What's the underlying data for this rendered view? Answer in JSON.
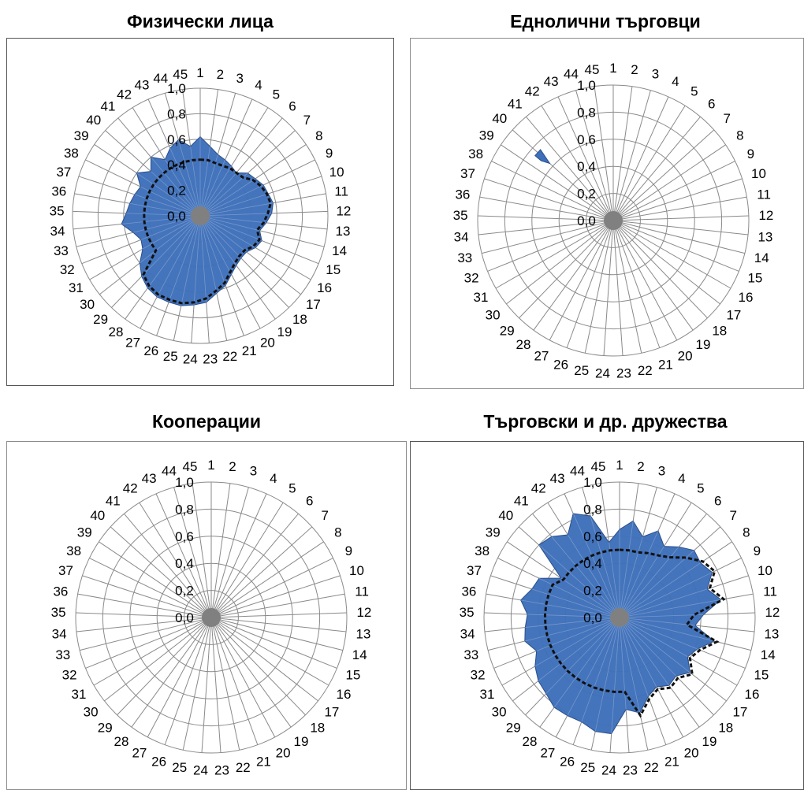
{
  "chart_data": [
    {
      "type": "radar",
      "title": "Физически лица",
      "categories": [
        "1",
        "2",
        "3",
        "4",
        "5",
        "6",
        "7",
        "8",
        "9",
        "10",
        "11",
        "12",
        "13",
        "14",
        "15",
        "16",
        "17",
        "18",
        "19",
        "20",
        "21",
        "22",
        "23",
        "24",
        "25",
        "26",
        "27",
        "28",
        "29",
        "30",
        "31",
        "32",
        "33",
        "34",
        "35",
        "36",
        "37",
        "38",
        "39",
        "40",
        "41",
        "42",
        "43",
        "44",
        "45"
      ],
      "rlim": [
        0,
        1
      ],
      "ticks": [
        "0,0",
        "0,2",
        "0,4",
        "0,6",
        "0,8",
        "1,0"
      ],
      "grid": true,
      "series": [
        {
          "color": "#3e6fba",
          "values": [
            0.62,
            0.55,
            0.5,
            0.48,
            0.46,
            0.44,
            0.5,
            0.52,
            0.55,
            0.56,
            0.58,
            0.56,
            0.52,
            0.48,
            0.52,
            0.5,
            0.46,
            0.46,
            0.48,
            0.52,
            0.58,
            0.62,
            0.68,
            0.7,
            0.72,
            0.72,
            0.72,
            0.7,
            0.66,
            0.6,
            0.52,
            0.5,
            0.54,
            0.62,
            0.58,
            0.56,
            0.54,
            0.52,
            0.6,
            0.52,
            0.6,
            0.52,
            0.58,
            0.62,
            0.55
          ]
        },
        {
          "color": "#111111",
          "style": "dashed",
          "values": [
            0.44,
            0.44,
            0.43,
            0.43,
            0.44,
            0.44,
            0.45,
            0.5,
            0.53,
            0.55,
            0.56,
            0.53,
            0.5,
            0.46,
            0.5,
            0.48,
            0.44,
            0.44,
            0.46,
            0.5,
            0.56,
            0.6,
            0.65,
            0.68,
            0.7,
            0.7,
            0.7,
            0.68,
            0.64,
            0.44,
            0.44,
            0.44,
            0.44,
            0.44,
            0.44,
            0.44,
            0.44,
            0.44,
            0.44,
            0.44,
            0.44,
            0.44,
            0.44,
            0.44,
            0.44
          ]
        }
      ]
    },
    {
      "type": "radar",
      "title": "Еднолични търговци",
      "categories": [
        "1",
        "2",
        "3",
        "4",
        "5",
        "6",
        "7",
        "8",
        "9",
        "10",
        "11",
        "12",
        "13",
        "14",
        "15",
        "16",
        "17",
        "18",
        "19",
        "20",
        "21",
        "22",
        "23",
        "24",
        "25",
        "26",
        "27",
        "28",
        "29",
        "30",
        "31",
        "32",
        "33",
        "34",
        "35",
        "36",
        "37",
        "38",
        "39",
        "40",
        "41",
        "42",
        "43",
        "44",
        "45"
      ],
      "rlim": [
        0,
        1
      ],
      "ticks": [
        "0,0",
        "0,2",
        "0,4",
        "0,6",
        "0,8",
        "1,0"
      ],
      "grid": true,
      "series": [
        {
          "color": "#3e6fba",
          "values": [
            0,
            0,
            0,
            0,
            0,
            0,
            0,
            0,
            0,
            0,
            0,
            0,
            0,
            0,
            0,
            0,
            0,
            0,
            0,
            0,
            0,
            0,
            0,
            0,
            0,
            0,
            0,
            0,
            0,
            0,
            0,
            0,
            0,
            0,
            0,
            0,
            0,
            0,
            0,
            0.75,
            0,
            0,
            0,
            0,
            0
          ]
        }
      ]
    },
    {
      "type": "radar",
      "title": "Кооперации",
      "categories": [
        "1",
        "2",
        "3",
        "4",
        "5",
        "6",
        "7",
        "8",
        "9",
        "10",
        "11",
        "12",
        "13",
        "14",
        "15",
        "16",
        "17",
        "18",
        "19",
        "20",
        "21",
        "22",
        "23",
        "24",
        "25",
        "26",
        "27",
        "28",
        "29",
        "30",
        "31",
        "32",
        "33",
        "34",
        "35",
        "36",
        "37",
        "38",
        "39",
        "40",
        "41",
        "42",
        "43",
        "44",
        "45"
      ],
      "rlim": [
        0,
        1
      ],
      "ticks": [
        "0,0",
        "0,2",
        "0,4",
        "0,6",
        "0,8",
        "1,0"
      ],
      "grid": true,
      "series": []
    },
    {
      "type": "radar",
      "title": "Търговски и др. дружества",
      "categories": [
        "1",
        "2",
        "3",
        "4",
        "5",
        "6",
        "7",
        "8",
        "9",
        "10",
        "11",
        "12",
        "13",
        "14",
        "15",
        "16",
        "17",
        "18",
        "19",
        "20",
        "21",
        "22",
        "23",
        "24",
        "25",
        "26",
        "27",
        "28",
        "29",
        "30",
        "31",
        "32",
        "33",
        "34",
        "35",
        "36",
        "37",
        "38",
        "39",
        "40",
        "41",
        "42",
        "43",
        "44",
        "45"
      ],
      "rlim": [
        0,
        1
      ],
      "ticks": [
        "0,0",
        "0,2",
        "0,4",
        "0,6",
        "0,8",
        "1,0"
      ],
      "grid": true,
      "series": [
        {
          "color": "#3e6fba",
          "values": [
            0.65,
            0.72,
            0.62,
            0.7,
            0.62,
            0.68,
            0.74,
            0.72,
            0.76,
            0.68,
            0.76,
            0.62,
            0.56,
            0.72,
            0.62,
            0.58,
            0.66,
            0.6,
            0.62,
            0.58,
            0.62,
            0.72,
            0.68,
            0.86,
            0.86,
            0.82,
            0.82,
            0.82,
            0.78,
            0.76,
            0.72,
            0.66,
            0.72,
            0.7,
            0.68,
            0.74,
            0.68,
            0.66,
            0.52,
            0.8,
            0.78,
            0.72,
            0.84,
            0.78,
            0.56
          ]
        },
        {
          "color": "#111111",
          "style": "dashed",
          "values": [
            0.5,
            0.5,
            0.5,
            0.52,
            0.54,
            0.58,
            0.66,
            0.74,
            0.78,
            0.7,
            0.78,
            0.55,
            0.5,
            0.74,
            0.64,
            0.6,
            0.68,
            0.62,
            0.64,
            0.6,
            0.64,
            0.74,
            0.55,
            0.55,
            0.55,
            0.55,
            0.55,
            0.55,
            0.55,
            0.55,
            0.55,
            0.55,
            0.55,
            0.55,
            0.55,
            0.55,
            0.55,
            0.55,
            0.5,
            0.5,
            0.5,
            0.5,
            0.5,
            0.5,
            0.5
          ]
        }
      ]
    }
  ]
}
